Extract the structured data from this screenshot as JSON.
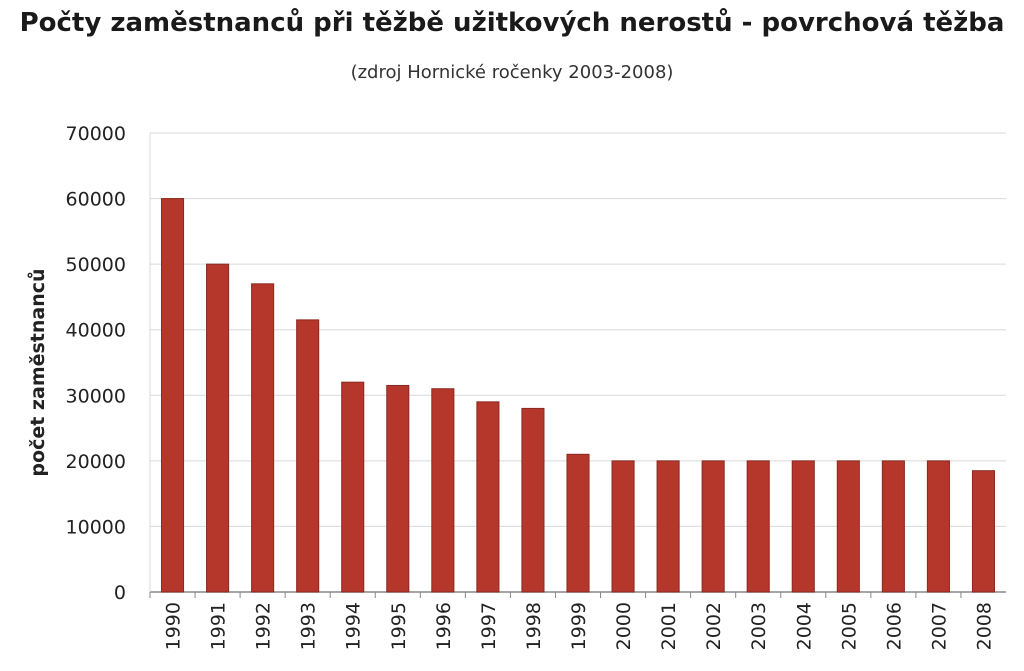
{
  "chart_data": {
    "type": "bar",
    "title": "Počty zaměstnanců při těžbě užitkových nerostů - povrchová těžba",
    "subtitle": "(zdroj Hornické ročenky 2003-2008)",
    "xlabel": "",
    "ylabel": "počet zaměstnanců",
    "ylim": [
      0,
      70000
    ],
    "yticks": [
      0,
      10000,
      20000,
      30000,
      40000,
      50000,
      60000,
      70000
    ],
    "ytick_labels": [
      "0",
      "10000",
      "20000",
      "30000",
      "40000",
      "50000",
      "60000",
      "70000"
    ],
    "grid": true,
    "categories": [
      "1990",
      "1991",
      "1992",
      "1993",
      "1994",
      "1995",
      "1996",
      "1997",
      "1998",
      "1999",
      "2000",
      "2001",
      "2002",
      "2003",
      "2004",
      "2005",
      "2006",
      "2007",
      "2008"
    ],
    "values": [
      60000,
      50000,
      47000,
      41500,
      32000,
      31500,
      31000,
      29000,
      28000,
      21000,
      20000,
      20000,
      20000,
      20000,
      20000,
      20000,
      20000,
      20000,
      18500
    ],
    "colors": {
      "bar": "#b5362a",
      "bar_edge": "#8a2a20",
      "grid": "#d9d9d9",
      "axis": "#888888"
    }
  }
}
